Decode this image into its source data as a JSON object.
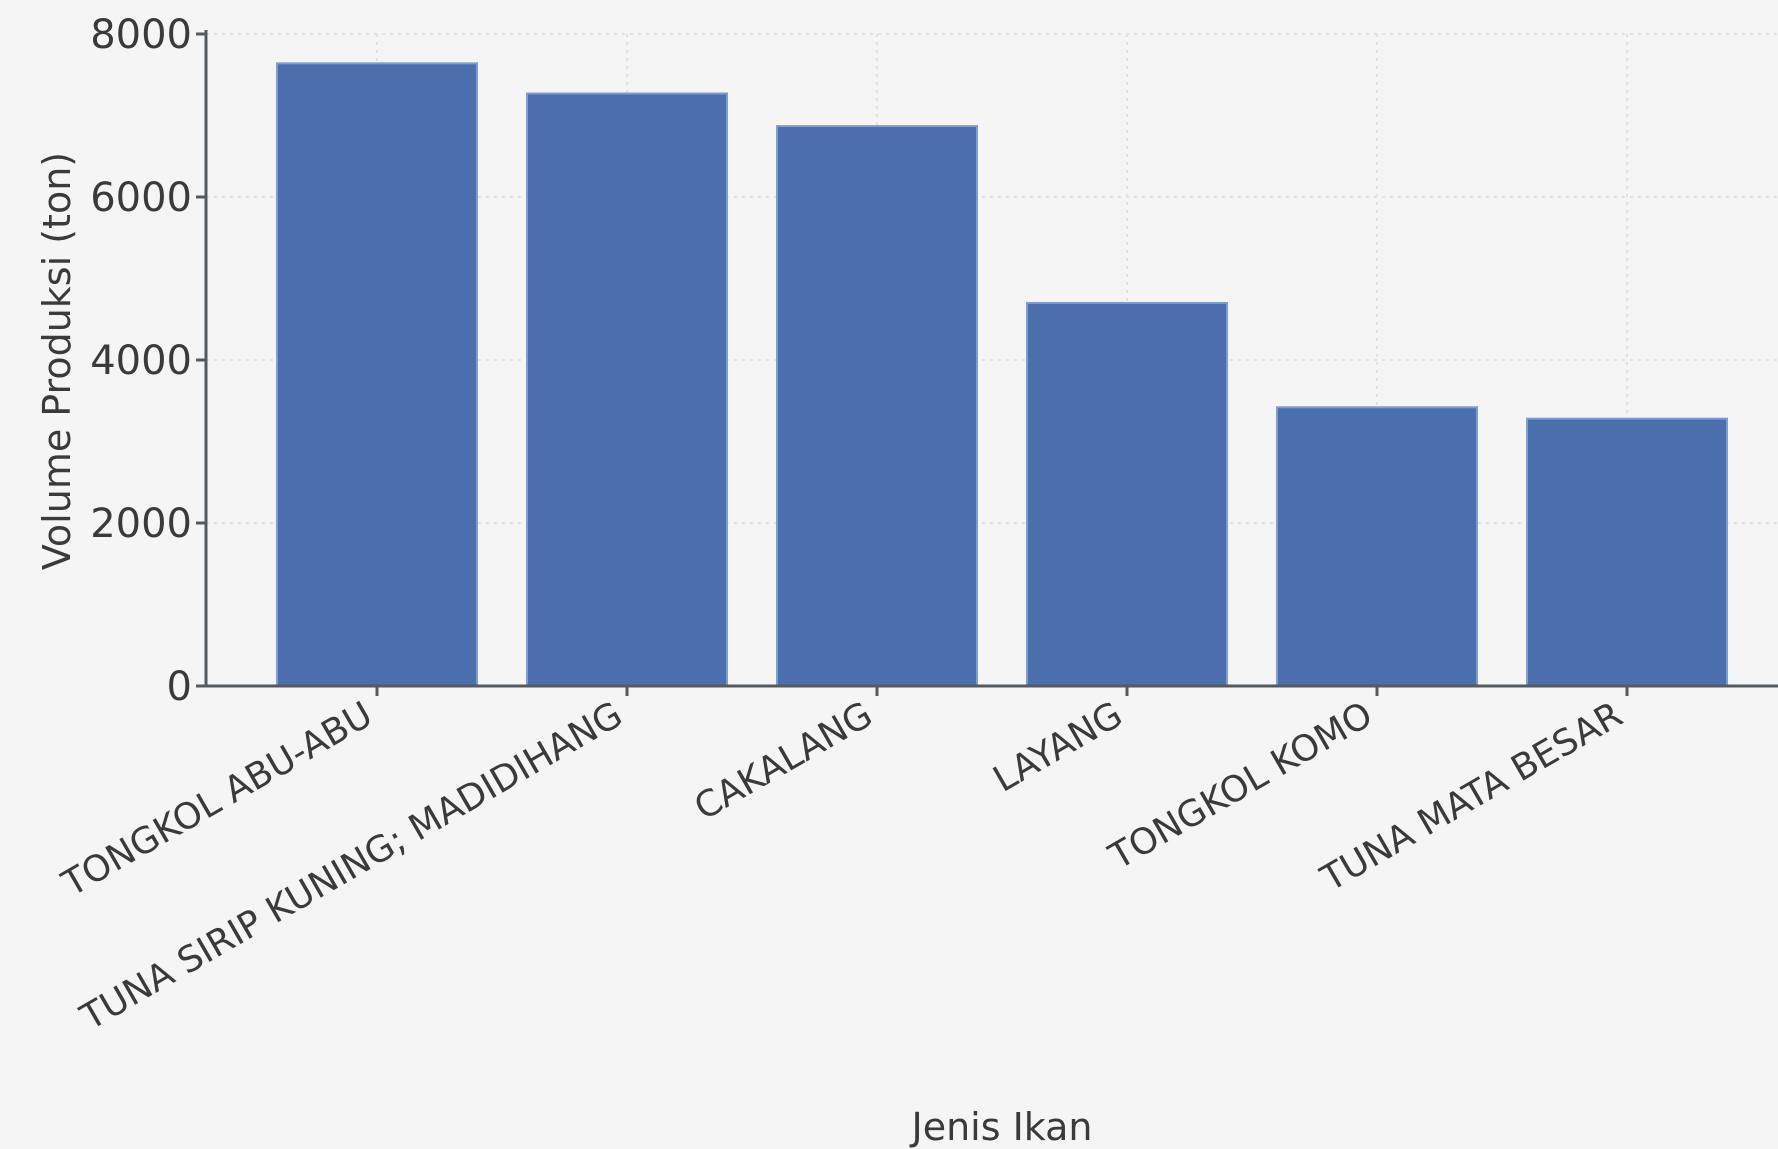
{
  "chart_data": {
    "type": "bar",
    "title": "",
    "xlabel": "Jenis Ikan",
    "ylabel": "Volume Produksi (ton)",
    "categories": [
      "TONGKOL ABU-ABU",
      "TUNA SIRIP KUNING; MADIDIHANG",
      "CAKALANG",
      "LAYANG",
      "TONGKOL KOMO",
      "TUNA MATA BESAR"
    ],
    "values": [
      7640,
      7270,
      6870,
      4700,
      3420,
      3280
    ],
    "ylim": [
      0,
      8000
    ],
    "yticks": [
      0,
      2000,
      4000,
      6000,
      8000
    ],
    "grid": true,
    "legend": "none",
    "colors": {
      "bar": "#4a6fac",
      "axis": "#555a60",
      "grid": "#dfe2e8",
      "background": "#f4f5f4"
    }
  }
}
